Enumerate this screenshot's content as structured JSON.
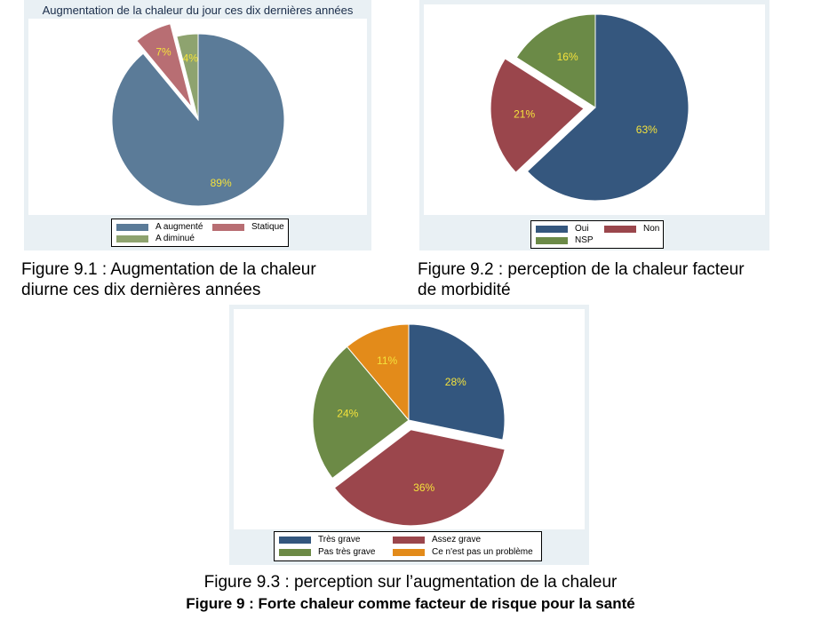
{
  "colors": {
    "panel_bg": "#e9f0f4",
    "label_text": "#f4e23c"
  },
  "chart_data": [
    {
      "type": "pie",
      "title": "Augmentation de la chaleur du jour ces dix dernières années",
      "slices": [
        {
          "label": "A augmenté",
          "value": 89,
          "display": "89%",
          "color": "#5b7b98",
          "exploded": false
        },
        {
          "label": "Statique",
          "value": 7,
          "display": "7%",
          "color": "#b86e73",
          "exploded": true
        },
        {
          "label": "A diminué",
          "value": 4,
          "display": "4%",
          "color": "#8ea36f",
          "exploded": false
        }
      ],
      "legend": "bottom"
    },
    {
      "type": "pie",
      "title": "",
      "slices": [
        {
          "label": "Oui",
          "value": 63,
          "display": "63%",
          "color": "#35577e",
          "exploded": false
        },
        {
          "label": "Non",
          "value": 21,
          "display": "21%",
          "color": "#9a464c",
          "exploded": true
        },
        {
          "label": "NSP",
          "value": 16,
          "display": "16%",
          "color": "#6b8a47",
          "exploded": false
        }
      ],
      "legend": "bottom"
    },
    {
      "type": "pie",
      "title": "",
      "slices": [
        {
          "label": "Très grave",
          "value": 28,
          "display": "28%",
          "color": "#33567e",
          "exploded": false
        },
        {
          "label": "Assez grave",
          "value": 36,
          "display": "36%",
          "color": "#9b464c",
          "exploded": true
        },
        {
          "label": "Pas très grave",
          "value": 24,
          "display": "24%",
          "color": "#6c8a46",
          "exploded": false
        },
        {
          "label": "Ce n'est pas un problème",
          "value": 11,
          "display": "11%",
          "color": "#e38b1a",
          "exploded": false
        }
      ],
      "legend": "bottom"
    }
  ],
  "captions": {
    "fig1_line1": "Figure 9.1 : Augmentation de la chaleur",
    "fig1_line2": "diurne ces dix dernières années",
    "fig2_line1": "Figure 9.2 : perception de la chaleur facteur",
    "fig2_line2": "de morbidité",
    "fig3": "Figure 9.3 : perception sur l’augmentation de la chaleur",
    "main": "Figure 9 : Forte chaleur comme facteur de risque pour la santé"
  }
}
